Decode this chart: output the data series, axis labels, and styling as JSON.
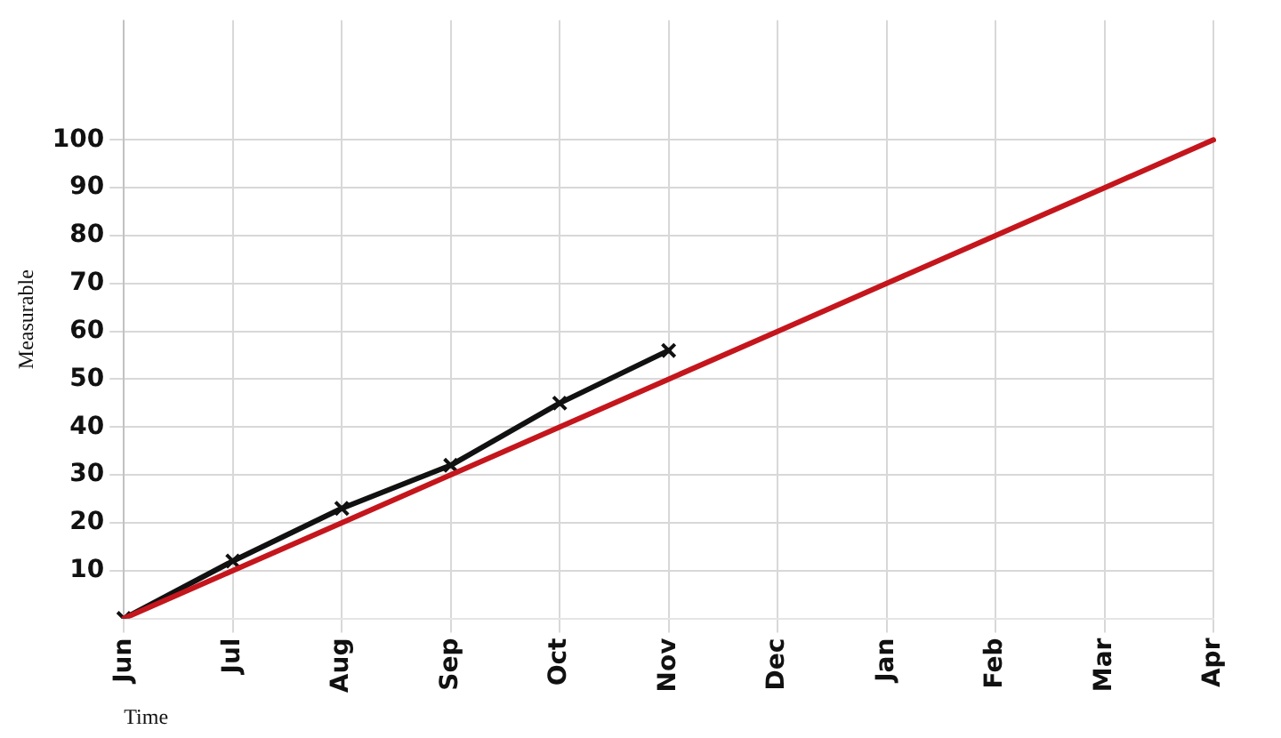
{
  "chart_data": {
    "type": "line",
    "xlabel": "Time",
    "ylabel": "Measurable",
    "categories": [
      "Jun",
      "Jul",
      "Aug",
      "Sep",
      "Oct",
      "Nov",
      "Dec",
      "Jan",
      "Feb",
      "Mar",
      "Apr"
    ],
    "series": [
      {
        "color": "#c4161c",
        "marker": "none",
        "values": [
          0,
          10,
          20,
          30,
          40,
          50,
          60,
          70,
          80,
          90,
          100
        ]
      },
      {
        "color": "#111111",
        "marker": "cross",
        "values": [
          0,
          12,
          23,
          32,
          45,
          56,
          null,
          null,
          null,
          null,
          null
        ]
      }
    ],
    "ylim": [
      0,
      125
    ],
    "yticks": [
      10,
      20,
      30,
      40,
      50,
      60,
      70,
      80,
      90,
      100
    ],
    "grid": true,
    "legend": false,
    "line_style": "solid"
  }
}
